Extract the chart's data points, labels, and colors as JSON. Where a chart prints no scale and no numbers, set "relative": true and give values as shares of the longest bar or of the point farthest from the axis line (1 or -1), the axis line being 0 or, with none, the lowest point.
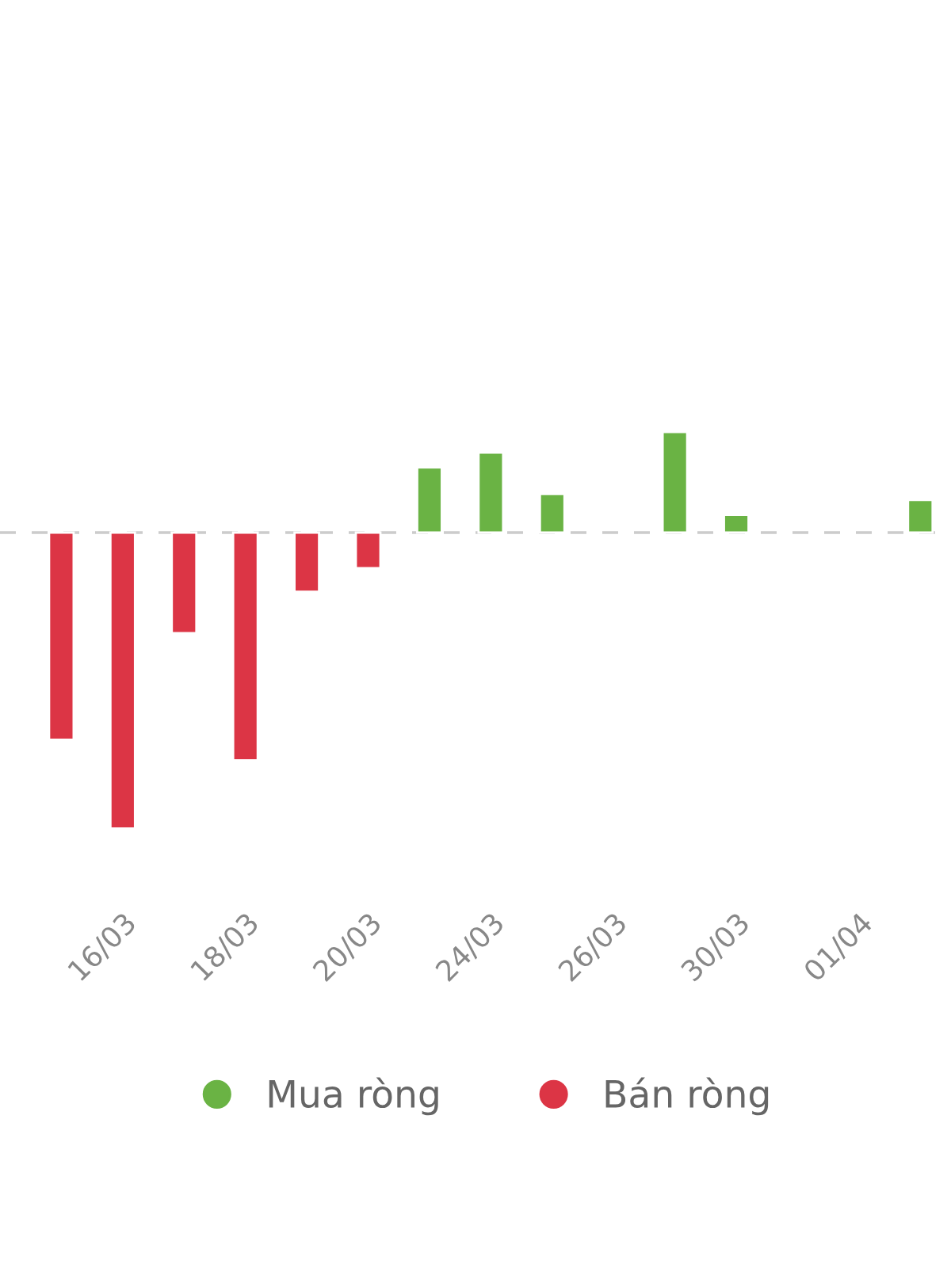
{
  "chart_data": {
    "type": "bar",
    "relative": true,
    "categories": [
      null,
      "16/03",
      null,
      "18/03",
      null,
      "20/03",
      null,
      "24/03",
      null,
      "26/03",
      null,
      "30/03",
      null,
      "01/04",
      null
    ],
    "series": [
      {
        "name": "Mua ròng",
        "color": "#6ab344",
        "values": [
          null,
          null,
          null,
          null,
          null,
          null,
          0.22,
          0.27,
          0.13,
          null,
          0.34,
          0.06,
          null,
          null,
          0.11
        ]
      },
      {
        "name": "Bán ròng",
        "color": "#dc3545",
        "values": [
          -0.7,
          -1,
          -0.34,
          -0.77,
          -0.2,
          -0.12,
          null,
          null,
          null,
          null,
          null,
          null,
          null,
          null,
          null
        ]
      }
    ],
    "ref_lines": [
      {
        "axis": "y",
        "value": 0,
        "color": "#cccccc",
        "line_style": "dashed"
      }
    ],
    "legend": "bottom"
  }
}
